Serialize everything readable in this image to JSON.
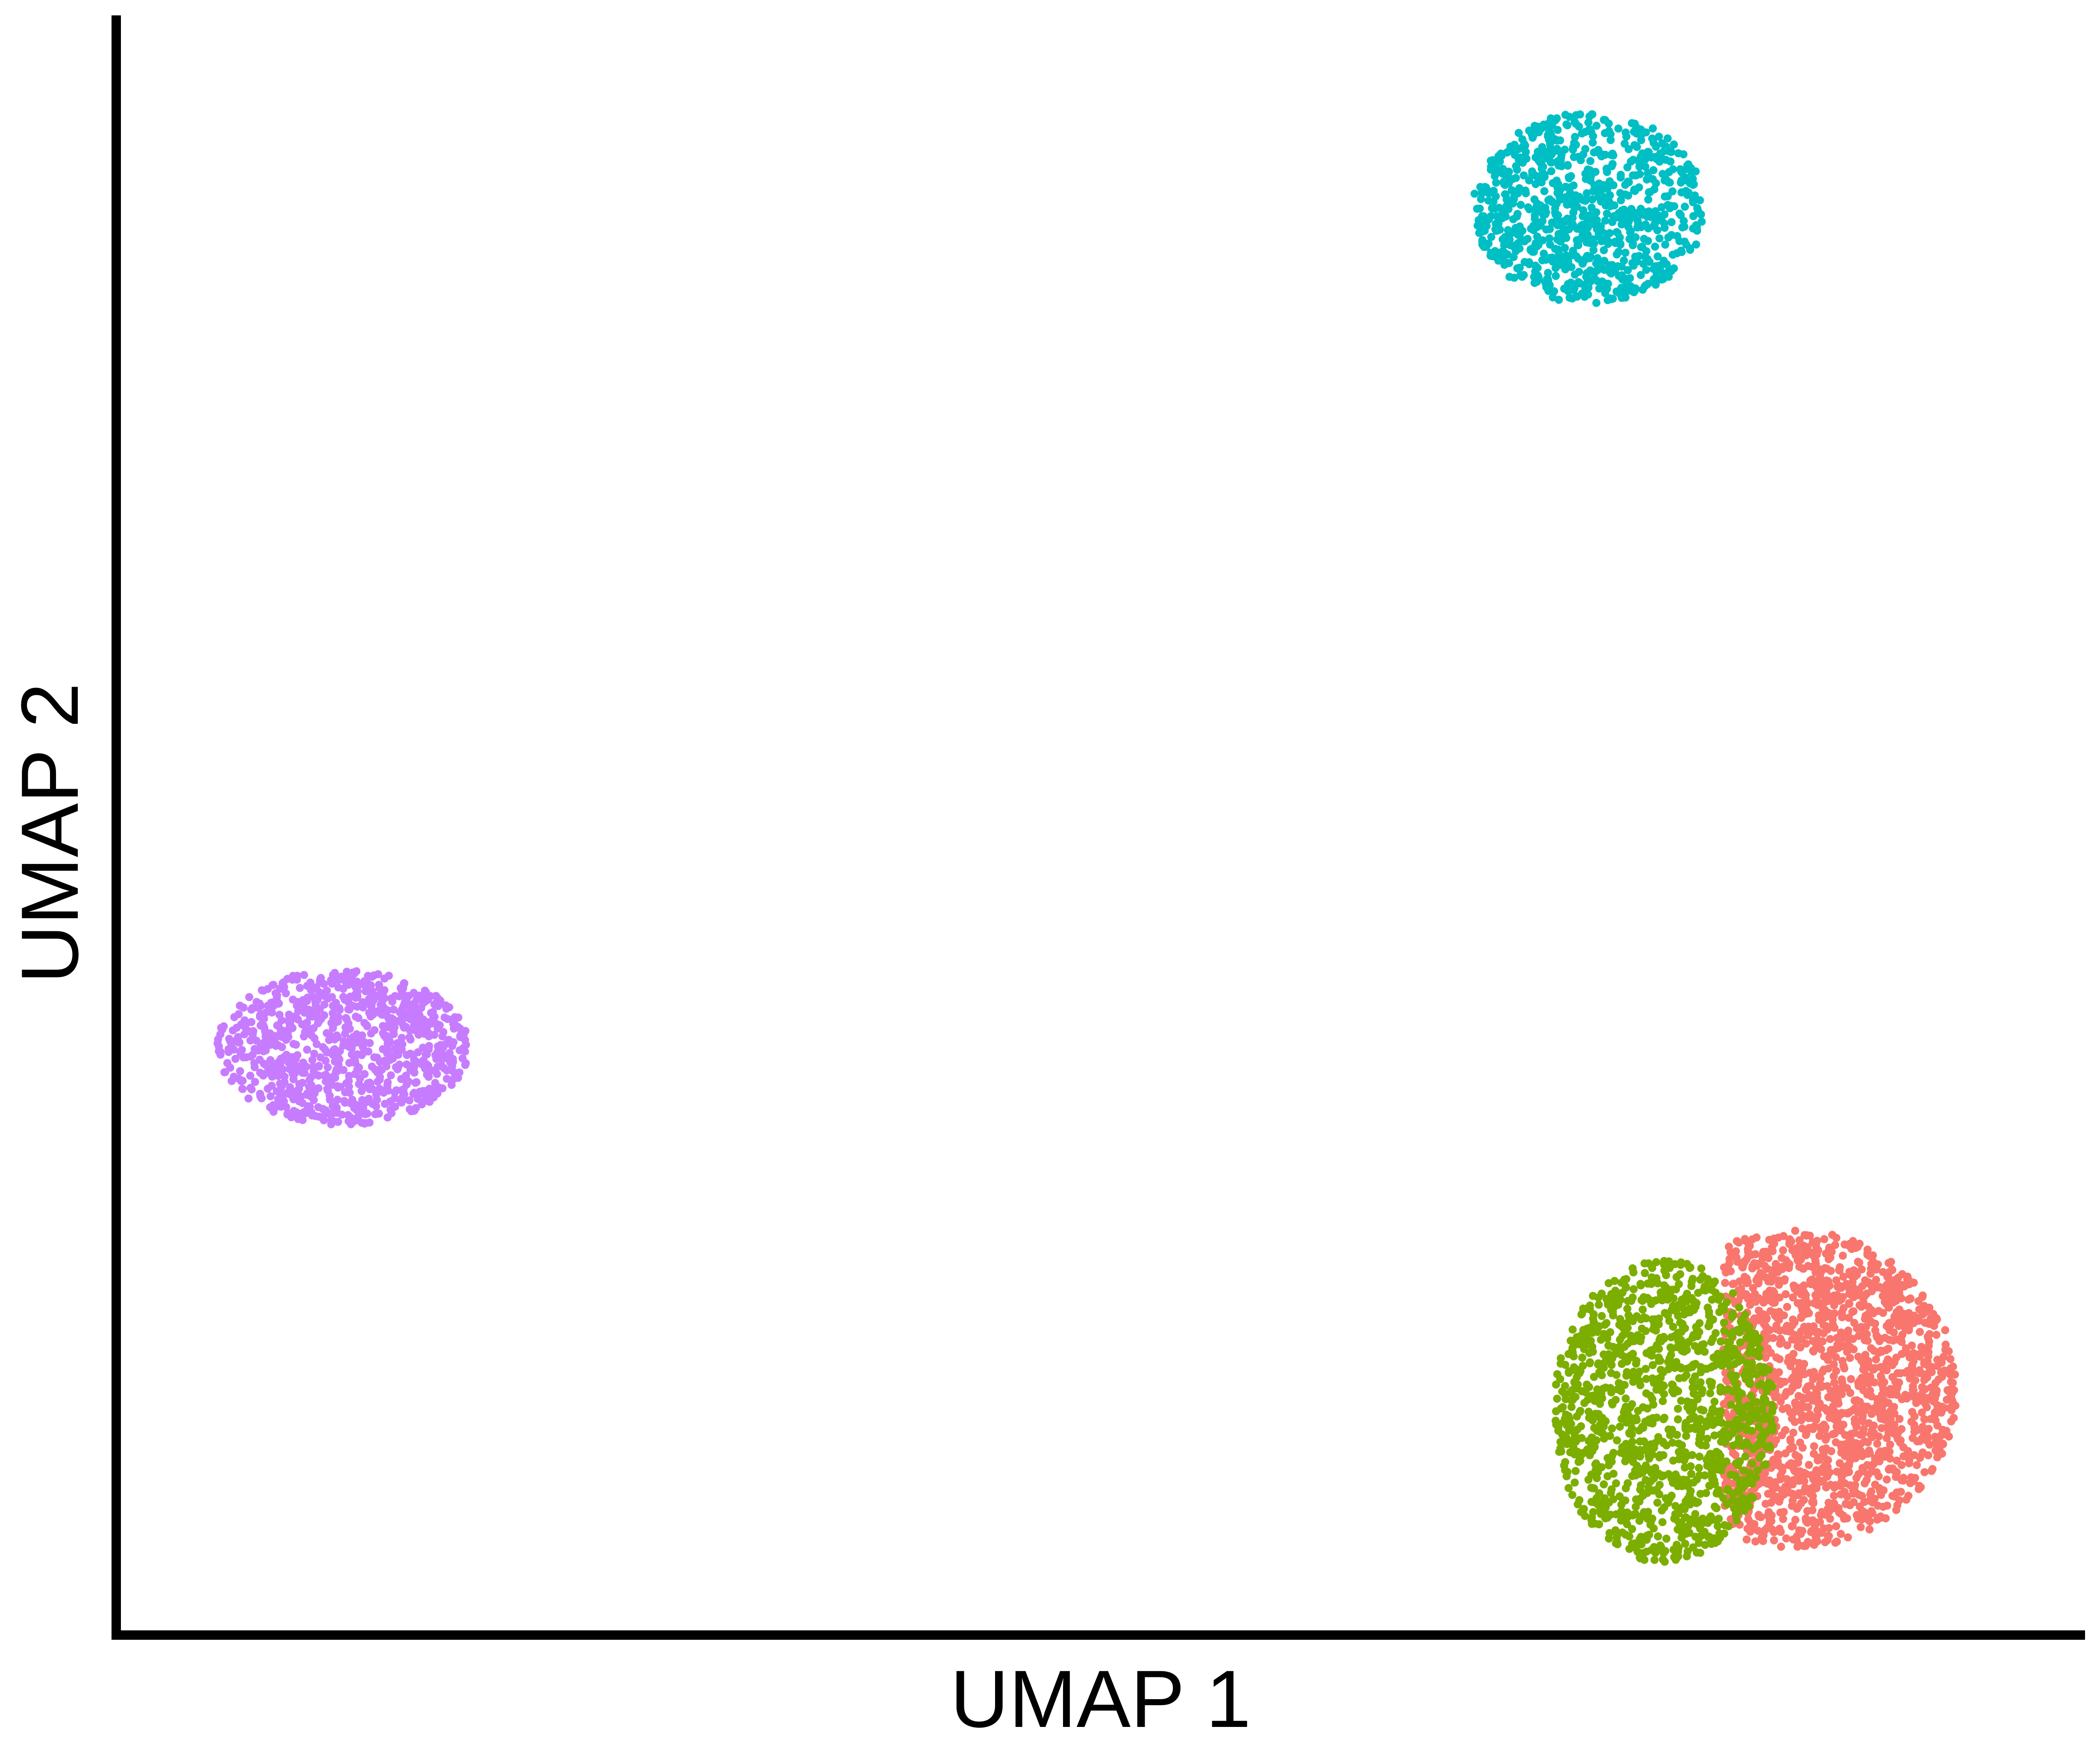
{
  "chart_data": {
    "type": "scatter",
    "title": "",
    "xlabel": "UMAP 1",
    "ylabel": "UMAP 2",
    "xlim": [
      0,
      100
    ],
    "ylim": [
      0,
      100
    ],
    "grid": false,
    "legend": "none",
    "tick_labels": false,
    "series": [
      {
        "color": "#F8766D",
        "cluster": {
          "x_center": 85.3,
          "y_center": 15.2,
          "x_radius": 8.2,
          "y_radius": 9.8,
          "count": 1700,
          "x_min_over_range": [
            80.0,
            92.5
          ],
          "skew_right": 0.45
        }
      },
      {
        "color": "#7CAE00",
        "cluster": {
          "x_center": 78.6,
          "y_center": 13.8,
          "x_radius": 5.6,
          "y_radius": 9.4,
          "count": 1250
        }
      },
      {
        "color": "#00BFC4",
        "cluster": {
          "x_center": 74.8,
          "y_center": 88.1,
          "x_radius": 5.9,
          "y_radius": 5.9,
          "count": 900
        }
      },
      {
        "color": "#C77CFF",
        "cluster": {
          "x_center": 11.5,
          "y_center": 36.3,
          "x_radius": 6.4,
          "y_radius": 4.8,
          "count": 900
        }
      }
    ]
  }
}
